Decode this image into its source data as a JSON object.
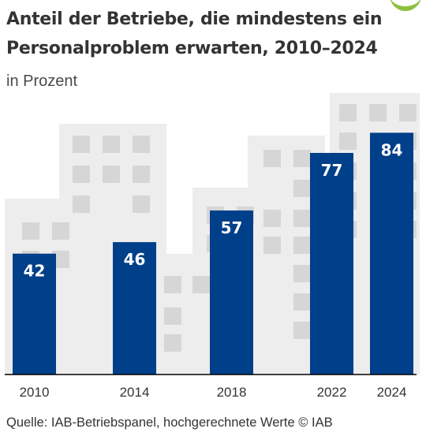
{
  "title": "Anteil der Betriebe, die mindestens ein Personalproblem erwarten, 2010–2024",
  "subtitle": "in Prozent",
  "source": "Quelle: IAB-Betriebspanel, hochgerechnete Werte ©  IAB",
  "colors": {
    "bar": "#003f8a",
    "building": "#ededed",
    "window": "#d6d6d6",
    "baseline": "#000000",
    "bar_label": "#ffffff",
    "logo_accent": "#8cbf3f"
  },
  "chart_data": {
    "type": "bar",
    "categories": [
      "2010",
      "2014",
      "2018",
      "2022",
      "2024"
    ],
    "values": [
      42,
      46,
      57,
      77,
      84
    ],
    "title": "Anteil der Betriebe, die mindestens ein Personalproblem erwarten, 2010–2024",
    "subtitle": "in Prozent",
    "ylim": [
      0,
      100
    ],
    "grid": false,
    "data_labels": true
  }
}
